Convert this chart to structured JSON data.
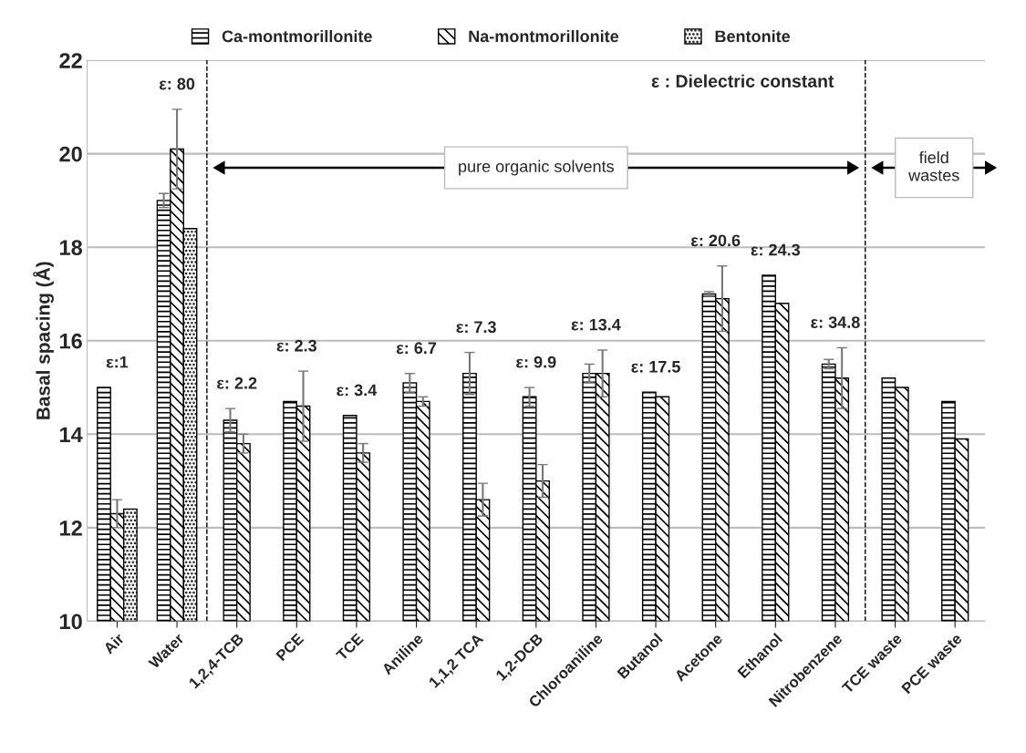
{
  "chart_data": {
    "type": "bar",
    "ylabel": "Basal spacing (Å)",
    "categories": [
      "Air",
      "Water",
      "1,2,4-TCB",
      "PCE",
      "TCE",
      "Aniline",
      "1,1,2 TCA",
      "1,2-DCB",
      "Chloroaniline",
      "Butanol",
      "Acetone",
      "Ethanol",
      "Nitrobenzene",
      "TCE waste",
      "PCE waste"
    ],
    "series": [
      {
        "name": "Ca-montmorillonite",
        "color": "#000000",
        "values": [
          15.0,
          19.0,
          14.3,
          14.7,
          14.4,
          15.1,
          15.3,
          14.8,
          15.3,
          14.9,
          17.0,
          17.4,
          15.5,
          15.2,
          14.7
        ],
        "errors": [
          null,
          0.15,
          0.25,
          null,
          null,
          0.2,
          0.45,
          0.2,
          0.2,
          null,
          0.05,
          null,
          0.1,
          null,
          null
        ]
      },
      {
        "name": "Na-montmorillonite",
        "color": "#000000",
        "values": [
          12.3,
          20.1,
          13.8,
          14.6,
          13.6,
          14.7,
          12.6,
          13.0,
          15.3,
          14.8,
          16.9,
          16.8,
          15.2,
          15.0,
          13.9
        ],
        "errors": [
          0.3,
          0.85,
          0.2,
          0.75,
          0.2,
          0.1,
          0.35,
          0.35,
          0.5,
          null,
          0.7,
          null,
          0.65,
          null,
          null
        ]
      },
      {
        "name": "Bentonite",
        "color": "#000000",
        "values": [
          12.4,
          18.4,
          null,
          null,
          null,
          null,
          null,
          null,
          null,
          null,
          null,
          null,
          null,
          null,
          null
        ]
      }
    ],
    "ylim": [
      10,
      22
    ],
    "yticks": [
      10,
      12,
      14,
      16,
      18,
      20,
      22
    ],
    "grid": "y",
    "legend": "top",
    "annotations": [
      "ε : Dielectric constant",
      "pure organic solvents",
      "field\nwastes",
      "ε:1",
      "ε: 80",
      "ε: 2.2",
      "ε: 2.3",
      "ε: 3.4",
      "ε: 6.7",
      "ε: 7.3",
      "ε: 9.9",
      "ε: 13.4",
      "ε: 17.5",
      "ε: 20.6",
      "ε: 24.3",
      "ε: 34.8"
    ]
  }
}
